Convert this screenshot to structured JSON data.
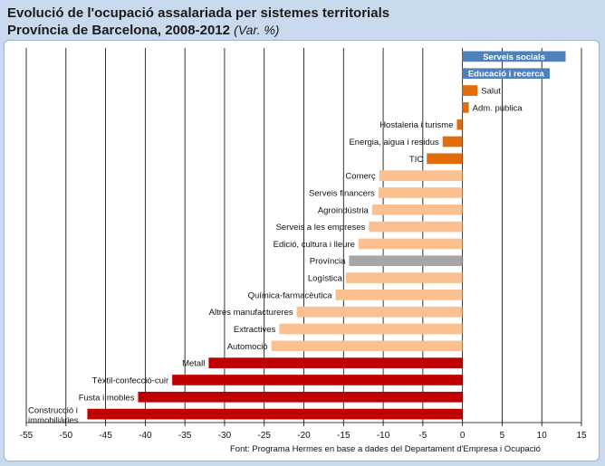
{
  "header": {
    "title_line1": "Evolució de l'ocupació assalariada per sistemes territorials",
    "title_line2": "Província de Barcelona, 2008-2012",
    "title_unit": "(Var. %)"
  },
  "source_note": "Font: Programa Hermes en base a dades del Departament d'Empresa i Ocupació",
  "colors": {
    "blue": "#4f81bd",
    "dark_orange": "#e36c0a",
    "light_orange": "#fac090",
    "gray": "#a6a6a6",
    "red": "#c00000"
  },
  "chart_data": {
    "type": "bar",
    "orientation": "horizontal",
    "title": "Evolució de l'ocupació assalariada per sistemes territorials. Província de Barcelona, 2008-2012 (Var. %)",
    "xlabel": "",
    "ylabel": "",
    "xlim": [
      -55,
      15
    ],
    "xticks": [
      -55,
      -50,
      -45,
      -40,
      -35,
      -30,
      -25,
      -20,
      -15,
      -10,
      -5,
      0,
      5,
      10,
      15
    ],
    "grid": true,
    "categories": [
      {
        "label": "Serveis socials",
        "value": 13,
        "color": "blue"
      },
      {
        "label": "Educació i recerca",
        "value": 11,
        "color": "blue"
      },
      {
        "label": "Salut",
        "value": 1.9,
        "color": "dark_orange"
      },
      {
        "label": "Adm. pública",
        "value": 0.8,
        "color": "dark_orange"
      },
      {
        "label": "Hostaleria i turisme",
        "value": -0.7,
        "color": "dark_orange"
      },
      {
        "label": "Energia, aigua i residus",
        "value": -2.5,
        "color": "dark_orange"
      },
      {
        "label": "TIC",
        "value": -4.5,
        "color": "dark_orange"
      },
      {
        "label": "Comerç",
        "value": -10.5,
        "color": "light_orange"
      },
      {
        "label": "Serveis financers",
        "value": -10.6,
        "color": "light_orange"
      },
      {
        "label": "Agroindústria",
        "value": -11.4,
        "color": "light_orange"
      },
      {
        "label": "Serveis a les empreses",
        "value": -11.8,
        "color": "light_orange"
      },
      {
        "label": "Edició, cultura i lleure",
        "value": -13.1,
        "color": "light_orange"
      },
      {
        "label": "Província",
        "value": -14.3,
        "color": "gray"
      },
      {
        "label": "Logística",
        "value": -14.7,
        "color": "light_orange"
      },
      {
        "label": "Química-farmacèutica",
        "value": -16.0,
        "color": "light_orange"
      },
      {
        "label": "Altres manufactureres",
        "value": -20.9,
        "color": "light_orange"
      },
      {
        "label": "Extractives",
        "value": -23.1,
        "color": "light_orange"
      },
      {
        "label": "Automoció",
        "value": -24.1,
        "color": "light_orange"
      },
      {
        "label": "Metall",
        "value": -32.0,
        "color": "red"
      },
      {
        "label": "Tèxtil-confecció-cuir",
        "value": -36.6,
        "color": "red"
      },
      {
        "label": "Fusta i mobles",
        "value": -40.9,
        "color": "red"
      },
      {
        "label": "Construcció i immobiliàries",
        "value": -47.3,
        "color": "red"
      }
    ]
  }
}
